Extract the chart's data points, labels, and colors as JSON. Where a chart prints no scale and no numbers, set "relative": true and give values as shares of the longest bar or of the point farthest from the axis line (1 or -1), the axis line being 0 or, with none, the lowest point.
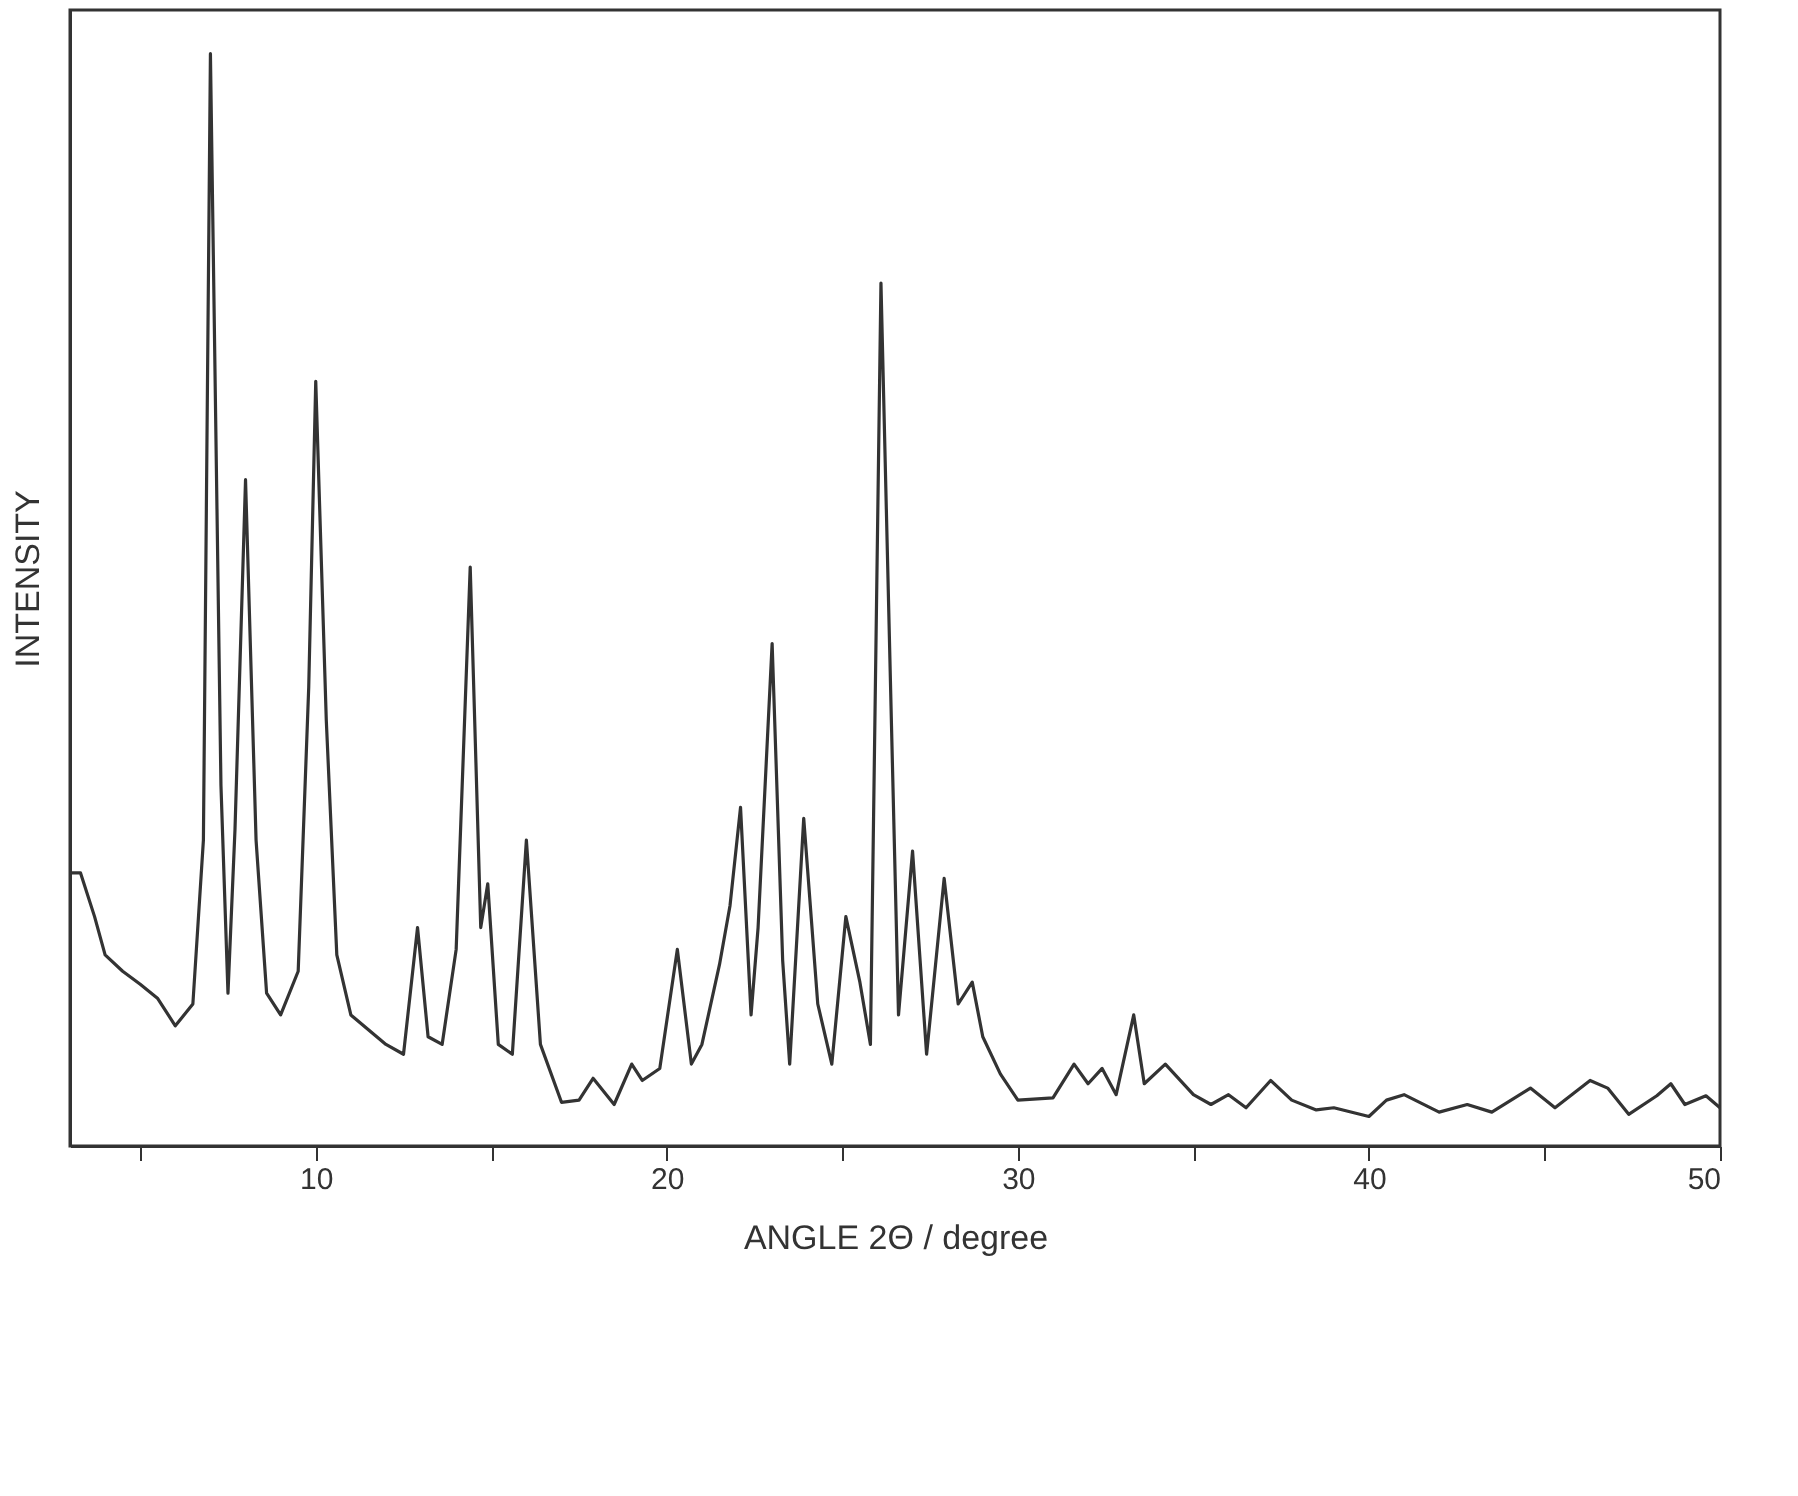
{
  "chart_data": {
    "type": "line",
    "relative": true,
    "xlabel": "ANGLE 2Θ / degree",
    "ylabel": "INTENSITY",
    "xlim": [
      3,
      50
    ],
    "xticks": [
      {
        "value": 5,
        "label": null
      },
      10,
      {
        "value": 15,
        "label": null
      },
      20,
      {
        "value": 25,
        "label": null
      },
      30,
      {
        "value": 35,
        "label": null
      },
      40,
      {
        "value": 45,
        "label": null
      },
      50
    ],
    "grid": false,
    "marker": "none",
    "line_style": "solid",
    "x": [
      3.0,
      3.3,
      3.7,
      4.0,
      4.5,
      5.0,
      5.5,
      6.0,
      6.5,
      6.8,
      7.0,
      7.3,
      7.5,
      7.7,
      8.0,
      8.3,
      8.6,
      9.0,
      9.5,
      9.8,
      10.0,
      10.3,
      10.6,
      11.0,
      12.0,
      12.5,
      12.9,
      13.2,
      13.6,
      14.0,
      14.4,
      14.7,
      14.9,
      15.2,
      15.6,
      16.0,
      16.4,
      17.0,
      17.5,
      17.9,
      18.5,
      19.0,
      19.3,
      19.8,
      20.3,
      20.7,
      21.0,
      21.5,
      21.8,
      22.1,
      22.4,
      22.6,
      23.0,
      23.3,
      23.5,
      23.9,
      24.3,
      24.7,
      25.1,
      25.5,
      25.8,
      26.1,
      26.4,
      26.6,
      27.0,
      27.4,
      27.9,
      28.3,
      28.7,
      29.0,
      29.5,
      30.0,
      31.0,
      31.6,
      32.0,
      32.4,
      32.8,
      33.3,
      33.6,
      34.2,
      35.0,
      35.5,
      36.0,
      36.5,
      37.2,
      37.8,
      38.5,
      39.0,
      40.0,
      40.5,
      41.0,
      42.0,
      42.8,
      43.5,
      44.6,
      45.3,
      46.3,
      46.8,
      47.4,
      48.2,
      48.6,
      49.0,
      49.6,
      50.0
    ],
    "series": [
      {
        "color": "#333333",
        "values": [
          0.25,
          0.25,
          0.21,
          0.175,
          0.16,
          0.148,
          0.135,
          0.11,
          0.13,
          0.28,
          1.0,
          0.33,
          0.14,
          0.29,
          0.61,
          0.28,
          0.14,
          0.12,
          0.16,
          0.42,
          0.7,
          0.39,
          0.175,
          0.12,
          0.093,
          0.084,
          0.2,
          0.1,
          0.093,
          0.18,
          0.53,
          0.2,
          0.24,
          0.093,
          0.084,
          0.28,
          0.093,
          0.04,
          0.042,
          0.062,
          0.038,
          0.075,
          0.06,
          0.071,
          0.18,
          0.075,
          0.093,
          0.166,
          0.22,
          0.31,
          0.12,
          0.2,
          0.46,
          0.17,
          0.075,
          0.3,
          0.13,
          0.075,
          0.21,
          0.15,
          0.093,
          0.79,
          0.385,
          0.12,
          0.27,
          0.084,
          0.245,
          0.13,
          0.15,
          0.1,
          0.066,
          0.042,
          0.044,
          0.075,
          0.057,
          0.071,
          0.047,
          0.12,
          0.057,
          0.075,
          0.047,
          0.038,
          0.047,
          0.035,
          0.06,
          0.042,
          0.033,
          0.035,
          0.027,
          0.042,
          0.047,
          0.031,
          0.038,
          0.031,
          0.053,
          0.035,
          0.06,
          0.053,
          0.029,
          0.046,
          0.057,
          0.038,
          0.046,
          0.035
        ]
      }
    ]
  }
}
